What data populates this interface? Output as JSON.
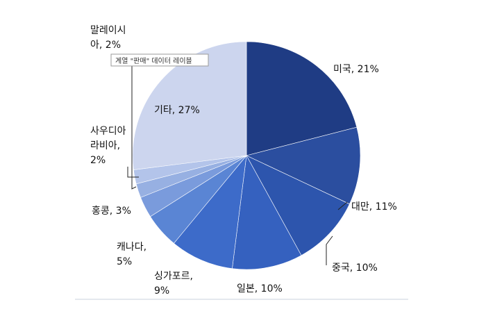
{
  "chart_data": {
    "type": "pie",
    "title": "",
    "slices": [
      {
        "label": "미국",
        "value": 21,
        "pct_text": "21%",
        "color": "#1f3c84"
      },
      {
        "label": "대만",
        "value": 11,
        "pct_text": "11%",
        "color": "#2b4e9f"
      },
      {
        "label": "중국",
        "value": 10,
        "pct_text": "10%",
        "color": "#2d55ad"
      },
      {
        "label": "일본",
        "value": 10,
        "pct_text": "10%",
        "color": "#3561bf"
      },
      {
        "label": "싱가포르",
        "value": 9,
        "pct_text": "9%",
        "color": "#3d6bc9"
      },
      {
        "label": "캐나다",
        "value": 5,
        "pct_text": "5%",
        "color": "#5a85d4"
      },
      {
        "label": "홍콩",
        "value": 3,
        "pct_text": "3%",
        "color": "#7a9bdc"
      },
      {
        "label": "사우디아라비아",
        "value": 2,
        "pct_text": "2%",
        "color": "#97b0e2"
      },
      {
        "label": "말레이시아",
        "value": 2,
        "pct_text": "2%",
        "color": "#b3c4ea"
      },
      {
        "label": "기타",
        "value": 27,
        "pct_text": "27%",
        "color": "#ccd5ee"
      }
    ],
    "labels_display": [
      {
        "lines": [
          "미국, 21%"
        ]
      },
      {
        "lines": [
          "대만, 11%"
        ]
      },
      {
        "lines": [
          "중국, 10%"
        ]
      },
      {
        "lines": [
          "일본, 10%"
        ]
      },
      {
        "lines": [
          "싱가포르,",
          "9%"
        ]
      },
      {
        "lines": [
          "캐나다,",
          "5%"
        ]
      },
      {
        "lines": [
          "홍콩, 3%"
        ]
      },
      {
        "lines": [
          "사우디아",
          "라비아,",
          "2%"
        ]
      },
      {
        "lines": [
          "말레이시",
          "아, 2%"
        ]
      },
      {
        "lines": [
          "기타, 27%"
        ]
      }
    ],
    "tooltip": "계열 \"판매\" 데이터 레이블",
    "legend": "none",
    "grid": false
  }
}
